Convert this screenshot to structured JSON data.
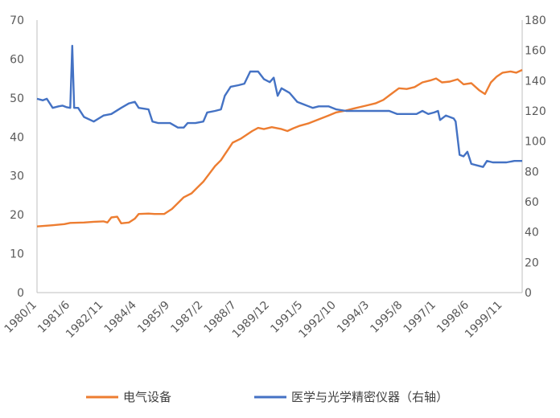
{
  "chart_data": {
    "type": "line",
    "title": "",
    "xlabel": "",
    "x_ticks": [
      "1980/1",
      "1981/6",
      "1982/11",
      "1984/4",
      "1985/9",
      "1987/2",
      "1988/7",
      "1989/12",
      "1991/5",
      "1992/10",
      "1994/3",
      "1995/8",
      "1997/1",
      "1998/6",
      "1999/11"
    ],
    "x_range": [
      "1980/1",
      "2000/9"
    ],
    "y_left": {
      "min": 0,
      "max": 70,
      "ticks": [
        "0",
        "10",
        "20",
        "30",
        "40",
        "50",
        "60",
        "70"
      ]
    },
    "y_right": {
      "min": 0,
      "max": 180,
      "ticks": [
        "0",
        "20",
        "40",
        "60",
        "80",
        "100",
        "120",
        "140",
        "160",
        "180"
      ]
    },
    "grid": false,
    "legend_position": "bottom",
    "series": [
      {
        "name": "电气设备",
        "axis": "left",
        "color": "#ED7D31",
        "points": [
          [
            "1980/1",
            17.0
          ],
          [
            "1980/9",
            17.3
          ],
          [
            "1981/3",
            17.6
          ],
          [
            "1981/6",
            17.9
          ],
          [
            "1982/1",
            18.0
          ],
          [
            "1982/6",
            18.2
          ],
          [
            "1982/11",
            18.3
          ],
          [
            "1983/1",
            18.0
          ],
          [
            "1983/3",
            19.3
          ],
          [
            "1983/6",
            19.5
          ],
          [
            "1983/8",
            17.8
          ],
          [
            "1983/12",
            18.0
          ],
          [
            "1984/3",
            19.0
          ],
          [
            "1984/5",
            20.2
          ],
          [
            "1984/10",
            20.3
          ],
          [
            "1985/1",
            20.2
          ],
          [
            "1985/6",
            20.2
          ],
          [
            "1985/10",
            21.5
          ],
          [
            "1986/1",
            23.0
          ],
          [
            "1986/4",
            24.5
          ],
          [
            "1986/8",
            25.5
          ],
          [
            "1986/11",
            27.0
          ],
          [
            "1987/2",
            28.5
          ],
          [
            "1987/5",
            30.5
          ],
          [
            "1987/8",
            32.5
          ],
          [
            "1987/11",
            34.0
          ],
          [
            "1988/1",
            35.5
          ],
          [
            "1988/3",
            37.0
          ],
          [
            "1988/5",
            38.5
          ],
          [
            "1988/9",
            39.5
          ],
          [
            "1988/12",
            40.5
          ],
          [
            "1989/3",
            41.5
          ],
          [
            "1989/6",
            42.3
          ],
          [
            "1989/9",
            42.0
          ],
          [
            "1990/1",
            42.5
          ],
          [
            "1990/6",
            42.0
          ],
          [
            "1990/9",
            41.5
          ],
          [
            "1990/12",
            42.2
          ],
          [
            "1991/3",
            42.8
          ],
          [
            "1991/8",
            43.5
          ],
          [
            "1992/1",
            44.5
          ],
          [
            "1992/6",
            45.5
          ],
          [
            "1992/10",
            46.3
          ],
          [
            "1993/3",
            46.8
          ],
          [
            "1993/7",
            47.3
          ],
          [
            "1994/1",
            48.0
          ],
          [
            "1994/6",
            48.6
          ],
          [
            "1994/10",
            49.5
          ],
          [
            "1995/2",
            51.0
          ],
          [
            "1995/6",
            52.5
          ],
          [
            "1995/10",
            52.3
          ],
          [
            "1996/2",
            52.8
          ],
          [
            "1996/6",
            54.0
          ],
          [
            "1996/10",
            54.5
          ],
          [
            "1997/1",
            55.0
          ],
          [
            "1997/4",
            54.0
          ],
          [
            "1997/8",
            54.2
          ],
          [
            "1997/12",
            54.8
          ],
          [
            "1998/3",
            53.5
          ],
          [
            "1998/7",
            53.8
          ],
          [
            "1998/11",
            52.0
          ],
          [
            "1999/2",
            51.0
          ],
          [
            "1999/5",
            54.0
          ],
          [
            "1999/8",
            55.5
          ],
          [
            "1999/11",
            56.5
          ],
          [
            "2000/3",
            56.8
          ],
          [
            "2000/6",
            56.5
          ],
          [
            "2000/9",
            57.2
          ]
        ]
      },
      {
        "name": "医学与光学精密仪器（右轴）",
        "axis": "right",
        "color": "#4472C4",
        "points": [
          [
            "1980/1",
            128
          ],
          [
            "1980/4",
            127
          ],
          [
            "1980/6",
            128
          ],
          [
            "1980/9",
            122
          ],
          [
            "1980/12",
            123
          ],
          [
            "1981/2",
            123.5
          ],
          [
            "1981/4",
            122.5
          ],
          [
            "1981/6",
            122
          ],
          [
            "1981/7",
            163
          ],
          [
            "1981/8",
            122
          ],
          [
            "1981/10",
            122
          ],
          [
            "1982/1",
            116
          ],
          [
            "1982/6",
            113
          ],
          [
            "1982/11",
            117
          ],
          [
            "1983/3",
            118
          ],
          [
            "1983/8",
            122
          ],
          [
            "1983/12",
            125
          ],
          [
            "1984/3",
            126
          ],
          [
            "1984/5",
            122
          ],
          [
            "1984/10",
            121
          ],
          [
            "1984/12",
            113
          ],
          [
            "1985/3",
            112
          ],
          [
            "1985/9",
            112
          ],
          [
            "1986/1",
            109
          ],
          [
            "1986/4",
            109
          ],
          [
            "1986/6",
            112
          ],
          [
            "1986/10",
            112
          ],
          [
            "1987/2",
            113
          ],
          [
            "1987/4",
            119
          ],
          [
            "1987/8",
            120
          ],
          [
            "1987/11",
            121
          ],
          [
            "1988/1",
            130
          ],
          [
            "1988/4",
            136
          ],
          [
            "1988/8",
            137
          ],
          [
            "1988/11",
            138
          ],
          [
            "1989/2",
            146
          ],
          [
            "1989/6",
            146
          ],
          [
            "1989/9",
            141
          ],
          [
            "1989/12",
            139
          ],
          [
            "1990/2",
            142
          ],
          [
            "1990/4",
            130
          ],
          [
            "1990/6",
            135
          ],
          [
            "1990/10",
            132
          ],
          [
            "1991/2",
            126
          ],
          [
            "1991/6",
            124
          ],
          [
            "1991/10",
            122
          ],
          [
            "1992/1",
            123
          ],
          [
            "1992/6",
            123
          ],
          [
            "1992/10",
            121
          ],
          [
            "1993/3",
            120
          ],
          [
            "1993/6",
            120
          ],
          [
            "1993/10",
            120
          ],
          [
            "1994/3",
            120
          ],
          [
            "1994/6",
            120
          ],
          [
            "1995/1",
            120
          ],
          [
            "1995/5",
            118
          ],
          [
            "1995/10",
            118
          ],
          [
            "1996/3",
            118
          ],
          [
            "1996/6",
            120
          ],
          [
            "1996/9",
            118
          ],
          [
            "1996/12",
            119
          ],
          [
            "1997/2",
            120
          ],
          [
            "1997/3",
            114
          ],
          [
            "1997/6",
            117
          ],
          [
            "1997/10",
            115
          ],
          [
            "1997/11",
            113
          ],
          [
            "1998/1",
            91
          ],
          [
            "1998/3",
            90
          ],
          [
            "1998/5",
            93
          ],
          [
            "1998/7",
            85
          ],
          [
            "1998/10",
            84
          ],
          [
            "1999/1",
            83
          ],
          [
            "1999/3",
            87
          ],
          [
            "1999/6",
            86
          ],
          [
            "1999/9",
            86
          ],
          [
            "2000/1",
            86
          ],
          [
            "2000/5",
            87
          ],
          [
            "2000/9",
            87
          ]
        ]
      }
    ]
  },
  "legend": {
    "items": [
      {
        "label": "电气设备",
        "color": "#ED7D31"
      },
      {
        "label": "医学与光学精密仪器（右轴）",
        "color": "#4472C4"
      }
    ]
  }
}
